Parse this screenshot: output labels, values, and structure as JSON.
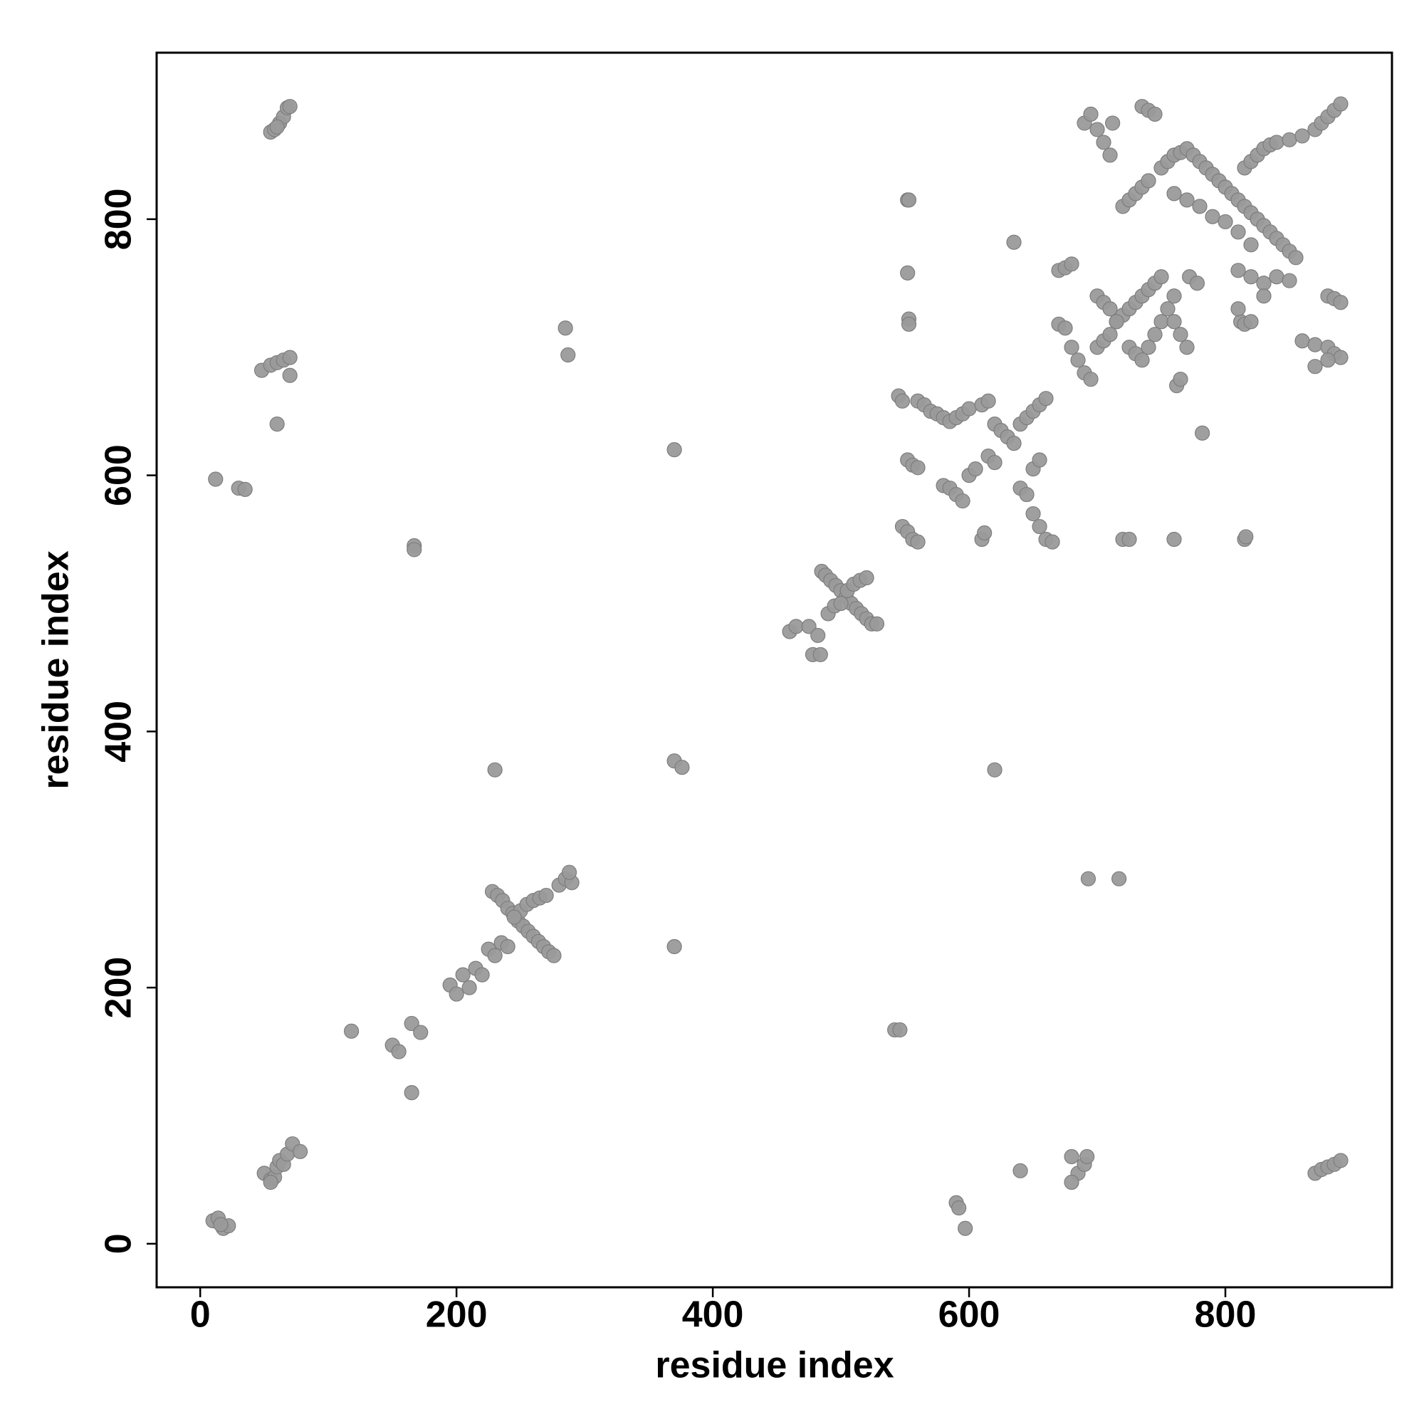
{
  "chart_data": {
    "type": "scatter",
    "x_label": "residue index",
    "y_label": "residue index",
    "xlim": [
      -34,
      930
    ],
    "ylim": [
      -34,
      930
    ],
    "xticks": [
      0,
      200,
      400,
      600,
      800
    ],
    "yticks": [
      0,
      200,
      400,
      600,
      800
    ],
    "color": "#9a9a9a",
    "x": [
      10,
      14,
      18,
      22,
      16,
      50,
      55,
      58,
      60,
      62,
      65,
      68,
      72,
      78,
      55,
      12,
      30,
      35,
      60,
      48,
      55,
      60,
      65,
      70,
      70,
      55,
      58,
      62,
      65,
      68,
      70,
      60,
      118,
      150,
      155,
      165,
      172,
      165,
      167,
      167,
      195,
      200,
      205,
      210,
      215,
      220,
      225,
      230,
      235,
      240,
      228,
      232,
      236,
      240,
      244,
      248,
      252,
      256,
      260,
      264,
      268,
      272,
      276,
      250,
      255,
      260,
      265,
      270,
      245,
      280,
      285,
      290,
      288,
      230,
      285,
      287,
      370,
      370,
      376,
      370,
      460,
      465,
      475,
      478,
      482,
      484,
      485,
      488,
      492,
      496,
      500,
      504,
      508,
      512,
      516,
      520,
      524,
      528,
      490,
      495,
      505,
      510,
      515,
      520,
      500,
      542,
      546,
      545,
      548,
      552,
      556,
      560,
      548,
      552,
      556,
      560,
      552,
      553,
      552,
      553,
      553,
      560,
      565,
      570,
      575,
      580,
      585,
      590,
      595,
      600,
      610,
      615,
      580,
      585,
      590,
      595,
      600,
      605,
      610,
      612,
      615,
      620,
      620,
      590,
      592,
      597,
      635,
      620,
      625,
      630,
      635,
      640,
      645,
      650,
      655,
      660,
      640,
      645,
      650,
      655,
      660,
      665,
      650,
      655,
      640,
      680,
      685,
      690,
      692,
      680,
      670,
      675,
      680,
      670,
      675,
      680,
      685,
      690,
      695,
      700,
      705,
      710,
      715,
      720,
      725,
      730,
      735,
      740,
      745,
      750,
      700,
      705,
      710,
      715,
      725,
      730,
      735,
      740,
      745,
      750,
      755,
      760,
      762,
      765,
      760,
      765,
      770,
      772,
      778,
      760,
      720,
      725,
      782,
      693,
      717,
      690,
      695,
      700,
      705,
      710,
      712,
      735,
      740,
      745,
      720,
      725,
      730,
      735,
      740,
      750,
      755,
      760,
      765,
      770,
      775,
      780,
      785,
      790,
      795,
      800,
      805,
      810,
      815,
      820,
      825,
      830,
      835,
      840,
      845,
      850,
      855,
      760,
      770,
      780,
      790,
      800,
      810,
      820,
      815,
      820,
      825,
      830,
      835,
      840,
      850,
      860,
      870,
      875,
      880,
      885,
      890,
      812,
      815,
      820,
      815,
      816,
      810,
      820,
      830,
      840,
      850,
      810,
      830,
      860,
      870,
      880,
      885,
      890,
      870,
      880,
      880,
      885,
      890,
      870,
      875,
      880,
      885,
      890
    ],
    "values": [
      18,
      20,
      12,
      14,
      15,
      55,
      50,
      52,
      60,
      65,
      62,
      70,
      78,
      72,
      48,
      597,
      590,
      589,
      640,
      682,
      686,
      688,
      690,
      692,
      678,
      868,
      870,
      875,
      880,
      887,
      888,
      872,
      166,
      155,
      150,
      172,
      165,
      118,
      545,
      542,
      202,
      195,
      210,
      200,
      215,
      210,
      230,
      225,
      235,
      232,
      275,
      272,
      268,
      262,
      258,
      252,
      248,
      244,
      240,
      236,
      232,
      228,
      225,
      260,
      265,
      268,
      270,
      272,
      255,
      280,
      285,
      282,
      290,
      370,
      715,
      694,
      620,
      377,
      372,
      232,
      478,
      482,
      482,
      460,
      475,
      460,
      525,
      522,
      518,
      514,
      510,
      505,
      500,
      496,
      492,
      488,
      484,
      484,
      492,
      498,
      510,
      515,
      518,
      520,
      500,
      167,
      167,
      662,
      658,
      612,
      608,
      606,
      560,
      556,
      550,
      548,
      815,
      815,
      758,
      722,
      718,
      658,
      655,
      650,
      648,
      645,
      642,
      645,
      648,
      652,
      655,
      658,
      592,
      590,
      585,
      580,
      600,
      605,
      550,
      555,
      615,
      610,
      370,
      32,
      28,
      12,
      782,
      640,
      635,
      630,
      625,
      640,
      645,
      650,
      655,
      660,
      590,
      585,
      570,
      560,
      550,
      548,
      605,
      612,
      57,
      68,
      55,
      62,
      68,
      48,
      760,
      762,
      765,
      718,
      715,
      700,
      690,
      680,
      675,
      700,
      705,
      710,
      720,
      725,
      730,
      735,
      740,
      745,
      750,
      755,
      740,
      735,
      730,
      720,
      700,
      695,
      690,
      700,
      710,
      720,
      730,
      740,
      670,
      675,
      720,
      710,
      700,
      755,
      750,
      550,
      550,
      550,
      633,
      285,
      285,
      875,
      882,
      870,
      860,
      850,
      875,
      888,
      885,
      882,
      810,
      815,
      820,
      825,
      830,
      840,
      845,
      850,
      852,
      855,
      850,
      845,
      840,
      835,
      830,
      825,
      820,
      815,
      810,
      805,
      800,
      795,
      790,
      785,
      780,
      775,
      770,
      820,
      815,
      810,
      802,
      798,
      790,
      780,
      840,
      845,
      850,
      855,
      858,
      860,
      862,
      865,
      870,
      875,
      880,
      885,
      890,
      720,
      718,
      720,
      550,
      552,
      760,
      755,
      750,
      755,
      752,
      730,
      740,
      705,
      702,
      700,
      695,
      692,
      685,
      690,
      740,
      738,
      735,
      55,
      58,
      60,
      62,
      65
    ]
  }
}
